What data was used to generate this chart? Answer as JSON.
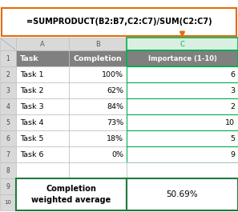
{
  "formula_text": "=SUMPRODUCT(B2:B7,C2:C7)/SUM(C2:C7)",
  "col_headers": [
    "A",
    "B",
    "C"
  ],
  "header_row": [
    "Task",
    "Completion",
    "Importance (1-10)"
  ],
  "data_rows": [
    [
      "Task 1",
      "100%",
      "6"
    ],
    [
      "Task 2",
      "62%",
      "3"
    ],
    [
      "Task 3",
      "84%",
      "2"
    ],
    [
      "Task 4",
      "73%",
      "10"
    ],
    [
      "Task 5",
      "18%",
      "5"
    ],
    [
      "Task 6",
      "0%",
      "9"
    ]
  ],
  "result_label": "Completion\nweighted average",
  "result_value": "50.69%",
  "header_bg": "#808080",
  "header_fg": "#ffffff",
  "col_c_header_fg": "#00b050",
  "col_c_header_bg": "#d9f0e1",
  "formula_box_border": "#e36c09",
  "arrow_color": "#e36c09",
  "result_border": "#1f7a3e",
  "col_c_border": "#00b050",
  "grid_color": "#bfbfbf",
  "row_num_bg": "#d9d9d9",
  "col_header_bg": "#d9d9d9",
  "col_header_fg": "#595959",
  "formula_fontsize": 7.0,
  "header_fontsize": 6.8,
  "data_fontsize": 6.8,
  "result_label_fontsize": 7.0,
  "result_value_fontsize": 7.5
}
